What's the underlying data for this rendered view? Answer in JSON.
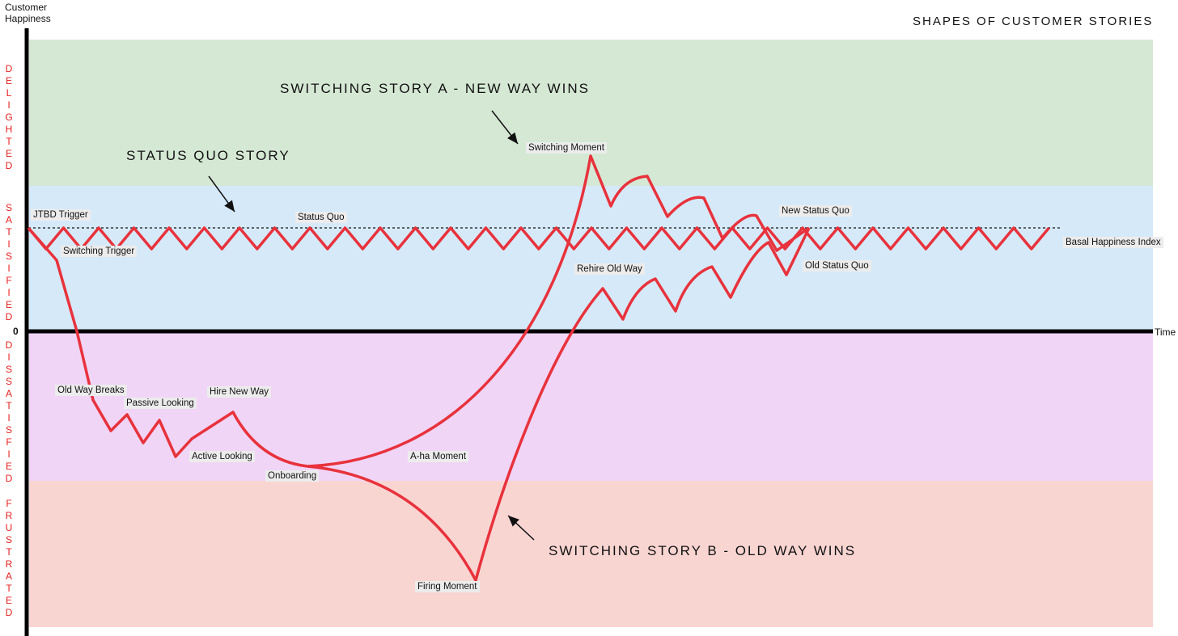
{
  "header": {
    "y_axis_label": "Customer Happiness",
    "title": "SHAPES OF CUSTOMER STORIES"
  },
  "zones": [
    "DELIGHTED",
    "SATISIFIED",
    "DISSATISFIED",
    "FRUSTRATED"
  ],
  "axis": {
    "origin": "0",
    "x_label": "Time"
  },
  "stories": [
    "STATUS QUO STORY",
    "SWITCHING STORY A - NEW WAY WINS",
    "SWITCHING STORY B - OLD WAY WINS"
  ],
  "points": [
    "JTBD Trigger",
    "Switching Trigger",
    "Status Quo",
    "Switching Moment",
    "New Status Quo",
    "Basal Happiness Index",
    "Rehire Old Way",
    "Old Status Quo",
    "Old Way Breaks",
    "Passive Looking",
    "Hire New Way",
    "Active Looking",
    "Onboarding",
    "A-ha Moment",
    "Firing Moment"
  ]
}
